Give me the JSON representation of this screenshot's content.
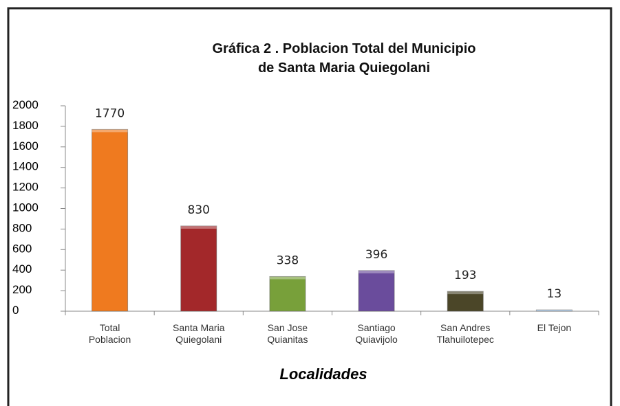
{
  "chart_data": {
    "type": "bar",
    "title": "Gráfica 2  . Poblacion Total del Municipio\nde Santa Maria Quiegolani",
    "x_label": "Localidades",
    "categories": [
      "Total\nPoblacion",
      "Santa Maria\nQuiegolani",
      "San Jose\nQuianitas",
      "Santiago\nQuiavijolo",
      "San Andres\nTlahuilotepec",
      "El Tejon"
    ],
    "values": [
      1770,
      830,
      338,
      396,
      193,
      13
    ],
    "colors": [
      "#ef7a1f",
      "#a3282a",
      "#78a03a",
      "#6a4c9c",
      "#4b4628",
      "#7eaad6"
    ],
    "ylim": [
      0,
      2000
    ],
    "yticks": [
      0,
      200,
      400,
      600,
      800,
      1000,
      1200,
      1400,
      1600,
      1800,
      2000
    ],
    "grid": false,
    "data_labels": true
  }
}
